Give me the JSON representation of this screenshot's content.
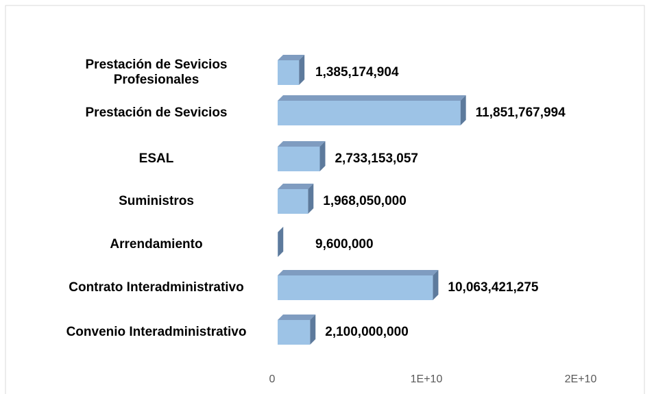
{
  "chart_data": {
    "type": "bar3d_horizontal",
    "categories": [
      "Prestación de Sevicios Profesionales",
      "Prestación de Sevicios",
      "ESAL",
      "Suministros",
      "Arrendamiento",
      "Contrato Interadministrativo",
      "Convenio Interadministrativo"
    ],
    "values": [
      1385174904,
      11851767994,
      2733153057,
      1968050000,
      9600000,
      10063421275,
      2100000000
    ],
    "value_labels": [
      "1,385,174,904",
      "11,851,767,994",
      "2,733,153,057",
      "1,968,050,000",
      "9,600,000",
      "10,063,421,275",
      "2,100,000,000"
    ],
    "color": "#9dc3e6",
    "xlim": [
      0,
      22000000000
    ],
    "xticks": [
      0,
      {
        "value": 10000000000,
        "label": "1E+10"
      },
      {
        "value": 20000000000,
        "label": "2E+10"
      }
    ],
    "grid": false
  }
}
